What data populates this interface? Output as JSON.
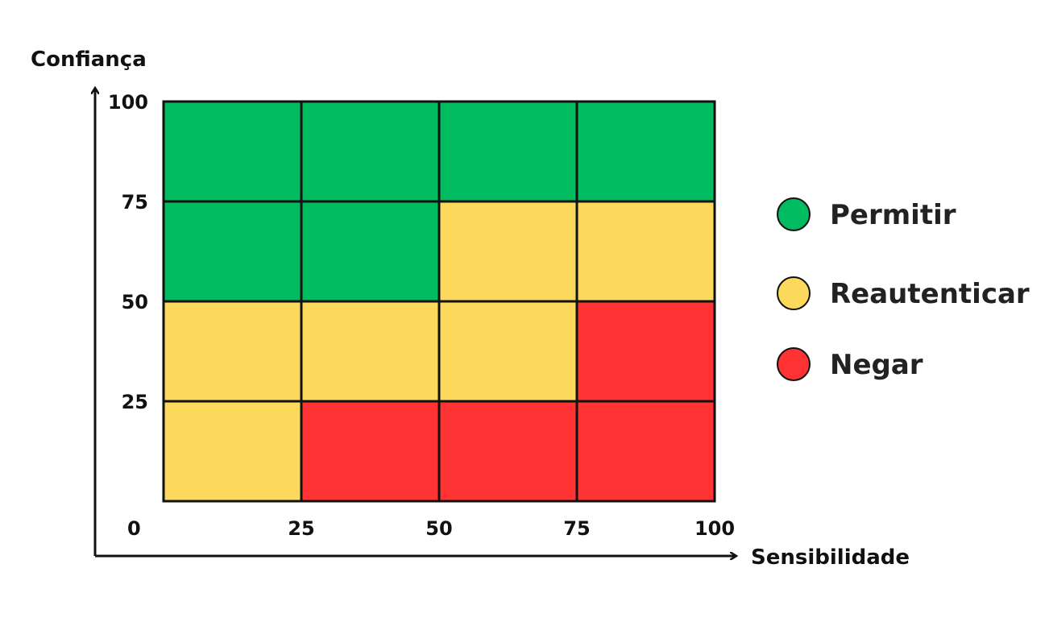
{
  "chart_data": {
    "type": "heatmap",
    "xlabel": "Sensibilidade",
    "ylabel": "Confiança",
    "xlim": [
      0,
      100
    ],
    "ylim": [
      0,
      100
    ],
    "x_ticks": [
      "0",
      "25",
      "50",
      "75",
      "100"
    ],
    "y_ticks": [
      "25",
      "50",
      "75",
      "100"
    ],
    "x_edges": [
      0,
      25,
      50,
      75,
      100
    ],
    "y_edges": [
      0,
      25,
      50,
      75,
      100
    ],
    "cells_rows_top_to_bottom": [
      [
        "permitir",
        "permitir",
        "permitir",
        "permitir"
      ],
      [
        "permitir",
        "permitir",
        "reautenticar",
        "reautenticar"
      ],
      [
        "reautenticar",
        "reautenticar",
        "reautenticar",
        "negar"
      ],
      [
        "reautenticar",
        "negar",
        "negar",
        "negar"
      ]
    ],
    "legend_position": "right",
    "legend": [
      {
        "key": "permitir",
        "label": "Permitir",
        "color": "#00bb5f"
      },
      {
        "key": "reautenticar",
        "label": "Reautenticar",
        "color": "#fcd95a"
      },
      {
        "key": "negar",
        "label": "Negar",
        "color": "#ff3333"
      }
    ]
  }
}
